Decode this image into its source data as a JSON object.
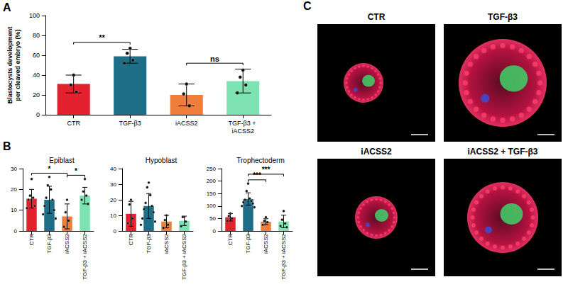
{
  "chart_data": [
    {
      "panel": "A",
      "type": "bar",
      "ylabel": "Blastocysts development per cleaved embryo (%)",
      "categories": [
        "CTR",
        "TGF-β3",
        "iACSS2",
        "TGF-β3 + iACSS2"
      ],
      "values": [
        31,
        59,
        20,
        34
      ],
      "errors": [
        9,
        7,
        11,
        12
      ],
      "points": [
        [
          40,
          30,
          23
        ],
        [
          67,
          62,
          55,
          52
        ],
        [
          31,
          21,
          9
        ],
        [
          45,
          38,
          30,
          22
        ]
      ],
      "colors": [
        "#e3212f",
        "#1d6e86",
        "#ef7d3b",
        "#7fe2b2"
      ],
      "ylim": [
        0,
        100
      ],
      "yticks": [
        0,
        20,
        40,
        60,
        80,
        100
      ],
      "grid": false,
      "annotations": [
        {
          "from": 0,
          "to": 1,
          "label": "**"
        },
        {
          "from": 2,
          "to": 3,
          "label": "ns"
        }
      ]
    },
    {
      "panel": "B",
      "type": "bar",
      "title": "Epiblast",
      "categories": [
        "CTR",
        "TGF-β3",
        "iACSS2",
        "TGF-β3 + iACSS2"
      ],
      "values": [
        15.5,
        15,
        7,
        17
      ],
      "errors": [
        4.5,
        6.5,
        6,
        4
      ],
      "points": [
        [
          25,
          17,
          16,
          15,
          12,
          11
        ],
        [
          26,
          22,
          20,
          16,
          15,
          12,
          10,
          8,
          6
        ],
        [
          15,
          9,
          5,
          2
        ],
        [
          25,
          19,
          17,
          15,
          13
        ]
      ],
      "colors": [
        "#e3212f",
        "#1d6e86",
        "#ef7d3b",
        "#7fe2b2"
      ],
      "ylim": [
        0,
        30
      ],
      "yticks": [
        0,
        10,
        20,
        30
      ],
      "grid": false,
      "annotations": [
        {
          "from": 0,
          "to": 2,
          "label": "*"
        },
        {
          "from": 2,
          "to": 3,
          "label": "*"
        }
      ]
    },
    {
      "type": "bar",
      "title": "Hypoblast",
      "categories": [
        "CTR",
        "TGF-β3",
        "iACSS2",
        "TGF-β3 + iACSS2"
      ],
      "values": [
        11,
        16,
        6,
        6.5
      ],
      "errors": [
        8,
        8,
        4,
        3
      ],
      "points": [
        [
          20,
          17,
          8,
          5
        ],
        [
          31,
          28,
          23,
          18,
          16,
          14,
          12,
          8,
          6,
          4
        ],
        [
          10,
          7,
          4,
          2
        ],
        [
          9,
          9,
          6,
          3
        ]
      ],
      "colors": [
        "#e3212f",
        "#1d6e86",
        "#ef7d3b",
        "#7fe2b2"
      ],
      "ylim": [
        0,
        40
      ],
      "yticks": [
        0,
        10,
        20,
        30,
        40
      ],
      "grid": false,
      "annotations": []
    },
    {
      "type": "bar",
      "title": "Trophectoderm",
      "categories": [
        "CTR",
        "TGF-β3",
        "iACSS2",
        "TGF-β3 + iACSS2"
      ],
      "values": [
        55,
        128,
        37,
        38
      ],
      "errors": [
        15,
        25,
        12,
        25
      ],
      "points": [
        [
          70,
          60,
          50,
          40
        ],
        [
          190,
          160,
          130,
          125,
          120,
          115,
          110,
          100,
          95
        ],
        [
          55,
          40,
          35,
          25
        ],
        [
          80,
          45,
          30,
          20,
          15
        ]
      ],
      "colors": [
        "#e3212f",
        "#1d6e86",
        "#ef7d3b",
        "#7fe2b2"
      ],
      "ylim": [
        0,
        250
      ],
      "yticks": [
        0,
        50,
        100,
        150,
        200,
        250
      ],
      "grid": false,
      "annotations": [
        {
          "from": 1,
          "to": 2,
          "label": "***"
        },
        {
          "from": 1,
          "to": 3,
          "label": "***"
        }
      ]
    }
  ],
  "images": {
    "panel": "C",
    "titles": [
      "CTR",
      "TGF-β3",
      "iACSS2",
      "iACSS2 + TGF-β3"
    ]
  }
}
